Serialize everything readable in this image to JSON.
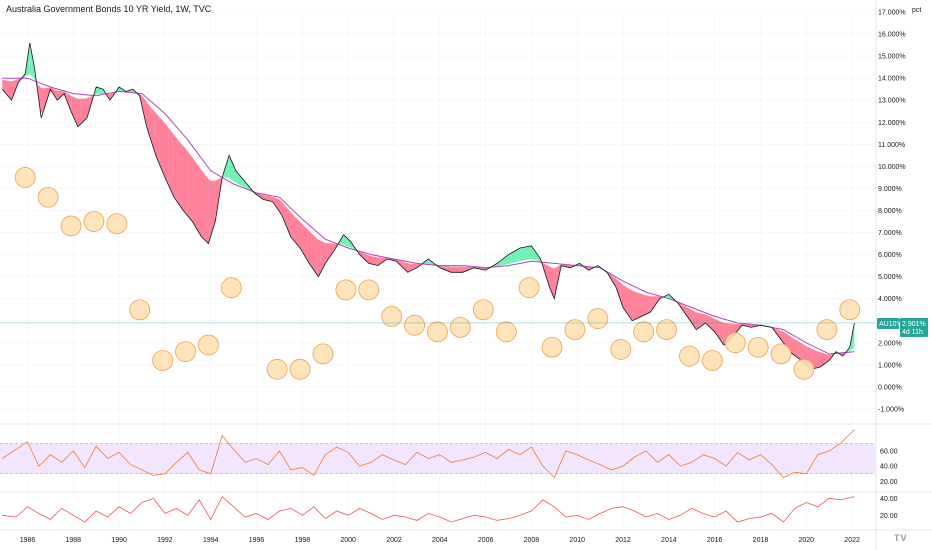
{
  "header": {
    "title": "Australia Government Bonds 10 YR Yield, 1W, TVC",
    "unit_label": "pct"
  },
  "price_tag": {
    "symbol": "AU10Y",
    "value": "2.901%",
    "countdown": "4d 11h",
    "color": "#26a69a"
  },
  "logo_text": "TV",
  "colors": {
    "price_line": "#131722",
    "ema_fast": "#ff9800",
    "ema_slow": "#ab47bc",
    "bull_fill": "#00e676",
    "bear_fill": "#ff1744",
    "bubble_fill": "#ffe0b2",
    "bubble_stroke": "#f0a050",
    "rsi_line": "#f57c2b",
    "rsi_band": "#e9d5ff",
    "osc_line": "#ef5350"
  },
  "chart_data": [
    {
      "type": "line",
      "title": "Australia Government Bonds 10 YR Yield, 1W, TVC",
      "unit": "pct",
      "y_range": [
        -1,
        17
      ],
      "x_range": [
        1984.8,
        2023.0
      ],
      "y_ticks": [
        "-1.000%",
        "0.000%",
        "1.000%",
        "2.000%",
        "3.000%",
        "4.000%",
        "5.000%",
        "6.000%",
        "7.000%",
        "8.000%",
        "9.000%",
        "10.000%",
        "11.000%",
        "12.000%",
        "13.000%",
        "14.000%",
        "15.000%",
        "16.000%",
        "17.000%"
      ],
      "x_ticks": [
        "1986",
        "1988",
        "1990",
        "1992",
        "1994",
        "1996",
        "1998",
        "2000",
        "2002",
        "2004",
        "2006",
        "2008",
        "2010",
        "2012",
        "2014",
        "2016",
        "2018",
        "2020",
        "2022"
      ],
      "x_tick_values": [
        1986,
        1988,
        1990,
        1992,
        1994,
        1996,
        1998,
        2000,
        2002,
        2004,
        2006,
        2008,
        2010,
        2012,
        2014,
        2016,
        2018,
        2020,
        2022
      ],
      "series": [
        {
          "x": [
            1984.9,
            1985.3,
            1985.6,
            1985.9,
            1986.1,
            1986.3,
            1986.6,
            1987.0,
            1987.3,
            1987.6,
            1987.9,
            1988.2,
            1988.6,
            1989.0,
            1989.3,
            1989.6,
            1990.0,
            1990.3,
            1990.6,
            1990.9,
            1991.2,
            1991.6,
            1992.0,
            1992.4,
            1992.8,
            1993.2,
            1993.6,
            1993.9,
            1994.2,
            1994.5,
            1994.8,
            1995.1,
            1995.5,
            1995.9,
            1996.3,
            1996.7,
            1997.1,
            1997.5,
            1997.9,
            1998.3,
            1998.7,
            1999.0,
            1999.4,
            1999.8,
            2000.1,
            2000.5,
            2000.9,
            2001.3,
            2001.7,
            2002.1,
            2002.6,
            2003.0,
            2003.5,
            2004.0,
            2004.5,
            2005.0,
            2005.5,
            2006.0,
            2006.5,
            2007.0,
            2007.5,
            2008.0,
            2008.4,
            2008.8,
            2009.0,
            2009.3,
            2009.7,
            2010.1,
            2010.5,
            2010.9,
            2011.3,
            2011.7,
            2012.0,
            2012.4,
            2012.8,
            2013.2,
            2013.6,
            2014.0,
            2014.4,
            2014.8,
            2015.2,
            2015.6,
            2016.0,
            2016.4,
            2016.8,
            2017.2,
            2017.6,
            2018.0,
            2018.5,
            2019.0,
            2019.4,
            2019.8,
            2020.2,
            2020.6,
            2021.0,
            2021.3,
            2021.6,
            2021.9,
            2022.1
          ],
          "values": [
            13.5,
            13.0,
            13.8,
            14.2,
            15.6,
            14.5,
            12.2,
            13.5,
            13.0,
            13.3,
            12.5,
            11.8,
            12.2,
            13.6,
            13.5,
            13.0,
            13.6,
            13.4,
            13.5,
            13.2,
            11.8,
            10.5,
            9.5,
            8.6,
            8.0,
            7.5,
            6.8,
            6.5,
            7.5,
            9.5,
            10.5,
            9.8,
            9.3,
            8.8,
            8.5,
            8.4,
            7.8,
            6.8,
            6.3,
            5.6,
            5.0,
            5.6,
            6.2,
            6.9,
            6.6,
            6.0,
            5.6,
            5.5,
            5.8,
            5.7,
            5.2,
            5.4,
            5.8,
            5.4,
            5.2,
            5.2,
            5.4,
            5.3,
            5.6,
            6.0,
            6.3,
            6.4,
            5.8,
            4.5,
            4.0,
            5.5,
            5.4,
            5.6,
            5.3,
            5.5,
            5.2,
            4.5,
            3.6,
            3.0,
            3.2,
            3.4,
            4.0,
            4.2,
            3.8,
            3.2,
            2.6,
            2.9,
            2.5,
            1.9,
            2.3,
            2.8,
            2.7,
            2.8,
            2.7,
            2.0,
            1.5,
            1.2,
            0.8,
            0.9,
            1.2,
            1.6,
            1.4,
            1.8,
            2.9
          ]
        },
        {
          "x": [
            1984.9,
            1986.0,
            1987.0,
            1988.0,
            1989.0,
            1990.0,
            1991.0,
            1992.0,
            1993.0,
            1994.0,
            1995.0,
            1996.0,
            1997.0,
            1998.0,
            1999.0,
            2000.0,
            2001.0,
            2002.0,
            2003.0,
            2004.0,
            2005.0,
            2006.0,
            2007.0,
            2008.0,
            2009.0,
            2010.0,
            2011.0,
            2012.0,
            2013.0,
            2014.0,
            2015.0,
            2016.0,
            2017.0,
            2018.0,
            2019.0,
            2020.0,
            2021.0,
            2022.1
          ],
          "values": [
            14.0,
            14.0,
            13.6,
            13.3,
            13.2,
            13.4,
            13.3,
            12.4,
            11.2,
            9.8,
            9.2,
            8.8,
            8.6,
            7.6,
            6.7,
            6.3,
            6.0,
            5.8,
            5.6,
            5.5,
            5.5,
            5.4,
            5.5,
            5.7,
            5.6,
            5.5,
            5.4,
            4.8,
            4.3,
            4.0,
            3.6,
            3.2,
            2.9,
            2.8,
            2.6,
            2.0,
            1.5,
            1.6
          ]
        }
      ],
      "bubbles": [
        {
          "x": 1985.9,
          "y": 9.5
        },
        {
          "x": 1986.9,
          "y": 8.6
        },
        {
          "x": 1987.9,
          "y": 7.3
        },
        {
          "x": 1988.9,
          "y": 7.5
        },
        {
          "x": 1989.9,
          "y": 7.4
        },
        {
          "x": 1990.9,
          "y": 3.5
        },
        {
          "x": 1991.9,
          "y": 1.2
        },
        {
          "x": 1992.9,
          "y": 1.6
        },
        {
          "x": 1993.9,
          "y": 1.9
        },
        {
          "x": 1994.9,
          "y": 4.5
        },
        {
          "x": 1996.9,
          "y": 0.8
        },
        {
          "x": 1997.9,
          "y": 0.8
        },
        {
          "x": 1998.9,
          "y": 1.5
        },
        {
          "x": 1999.9,
          "y": 4.4
        },
        {
          "x": 2000.9,
          "y": 4.4
        },
        {
          "x": 2001.9,
          "y": 3.2
        },
        {
          "x": 2002.9,
          "y": 2.8
        },
        {
          "x": 2003.9,
          "y": 2.5
        },
        {
          "x": 2004.9,
          "y": 2.7
        },
        {
          "x": 2005.9,
          "y": 3.5
        },
        {
          "x": 2006.9,
          "y": 2.5
        },
        {
          "x": 2007.9,
          "y": 4.5
        },
        {
          "x": 2008.9,
          "y": 1.8
        },
        {
          "x": 2009.9,
          "y": 2.6
        },
        {
          "x": 2010.9,
          "y": 3.1
        },
        {
          "x": 2011.9,
          "y": 1.7
        },
        {
          "x": 2012.9,
          "y": 2.5
        },
        {
          "x": 2013.9,
          "y": 2.6
        },
        {
          "x": 2014.9,
          "y": 1.4
        },
        {
          "x": 2015.9,
          "y": 1.2
        },
        {
          "x": 2016.9,
          "y": 2.0
        },
        {
          "x": 2017.9,
          "y": 1.8
        },
        {
          "x": 2018.9,
          "y": 1.5
        },
        {
          "x": 2019.9,
          "y": 0.8
        },
        {
          "x": 2020.9,
          "y": 2.6
        },
        {
          "x": 2021.9,
          "y": 3.5
        }
      ]
    },
    {
      "type": "line",
      "title": "",
      "y_range": [
        10,
        90
      ],
      "y_ticks": [
        "20.00",
        "40.00",
        "60.00"
      ],
      "y_tick_values": [
        20,
        40,
        60
      ],
      "band": [
        30,
        70
      ],
      "series": [
        {
          "x": [
            1984.9,
            1985.5,
            1986.0,
            1986.5,
            1987.0,
            1987.5,
            1988.0,
            1988.5,
            1989.0,
            1989.5,
            1990.0,
            1990.5,
            1991.0,
            1991.5,
            1992.0,
            1992.5,
            1993.0,
            1993.5,
            1994.0,
            1994.5,
            1995.0,
            1995.5,
            1996.0,
            1996.5,
            1997.0,
            1997.5,
            1998.0,
            1998.5,
            1999.0,
            1999.5,
            2000.0,
            2000.5,
            2001.0,
            2001.5,
            2002.0,
            2002.5,
            2003.0,
            2003.5,
            2004.0,
            2004.5,
            2005.0,
            2005.5,
            2006.0,
            2006.5,
            2007.0,
            2007.5,
            2008.0,
            2008.5,
            2009.0,
            2009.5,
            2010.0,
            2010.5,
            2011.0,
            2011.5,
            2012.0,
            2012.5,
            2013.0,
            2013.5,
            2014.0,
            2014.5,
            2015.0,
            2015.5,
            2016.0,
            2016.5,
            2017.0,
            2017.5,
            2018.0,
            2018.5,
            2019.0,
            2019.5,
            2020.0,
            2020.5,
            2021.0,
            2021.5,
            2022.1
          ],
          "values": [
            50,
            62,
            72,
            40,
            55,
            45,
            60,
            38,
            66,
            50,
            58,
            42,
            35,
            28,
            30,
            45,
            58,
            35,
            30,
            80,
            62,
            45,
            50,
            42,
            60,
            35,
            38,
            28,
            55,
            65,
            58,
            40,
            45,
            55,
            48,
            42,
            58,
            50,
            55,
            45,
            48,
            52,
            58,
            50,
            62,
            55,
            65,
            40,
            25,
            60,
            55,
            48,
            42,
            35,
            40,
            52,
            60,
            45,
            55,
            40,
            45,
            55,
            50,
            40,
            58,
            48,
            55,
            42,
            25,
            32,
            30,
            55,
            60,
            70,
            88
          ]
        }
      ]
    },
    {
      "type": "line",
      "title": "",
      "y_range": [
        5,
        45
      ],
      "y_ticks": [
        "20.00",
        "40.00"
      ],
      "y_tick_values": [
        20,
        40
      ],
      "series": [
        {
          "x": [
            1984.9,
            1985.5,
            1986.0,
            1986.5,
            1987.0,
            1987.5,
            1988.0,
            1988.5,
            1989.0,
            1989.5,
            1990.0,
            1990.5,
            1991.0,
            1991.5,
            1992.0,
            1992.5,
            1993.0,
            1993.5,
            1994.0,
            1994.5,
            1995.0,
            1995.5,
            1996.0,
            1996.5,
            1997.0,
            1997.5,
            1998.0,
            1998.5,
            1999.0,
            1999.5,
            2000.0,
            2000.5,
            2001.0,
            2001.5,
            2002.0,
            2002.5,
            2003.0,
            2003.5,
            2004.0,
            2004.5,
            2005.0,
            2005.5,
            2006.0,
            2006.5,
            2007.0,
            2007.5,
            2008.0,
            2008.5,
            2009.0,
            2009.5,
            2010.0,
            2010.5,
            2011.0,
            2011.5,
            2012.0,
            2012.5,
            2013.0,
            2013.5,
            2014.0,
            2014.5,
            2015.0,
            2015.5,
            2016.0,
            2016.5,
            2017.0,
            2017.5,
            2018.0,
            2018.5,
            2019.0,
            2019.5,
            2020.0,
            2020.5,
            2021.0,
            2021.5,
            2022.1
          ],
          "values": [
            20,
            18,
            30,
            22,
            15,
            28,
            20,
            12,
            25,
            18,
            30,
            22,
            35,
            40,
            22,
            28,
            20,
            38,
            15,
            42,
            30,
            18,
            22,
            15,
            25,
            28,
            20,
            30,
            16,
            25,
            20,
            28,
            22,
            15,
            20,
            18,
            14,
            22,
            18,
            12,
            16,
            20,
            18,
            14,
            16,
            20,
            25,
            38,
            30,
            18,
            20,
            15,
            22,
            28,
            30,
            25,
            18,
            22,
            15,
            20,
            28,
            22,
            18,
            25,
            12,
            16,
            18,
            22,
            12,
            28,
            35,
            30,
            40,
            38,
            42
          ]
        }
      ]
    }
  ]
}
